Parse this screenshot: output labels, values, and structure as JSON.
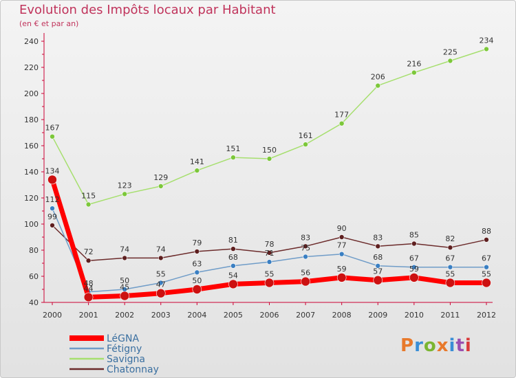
{
  "title": "Evolution des Impôts locaux par Habitant",
  "subtitle": "(en € et par an)",
  "brand": {
    "text": "Proxiti",
    "colors": [
      "#e8792b",
      "#3a8ed6",
      "#7ab532",
      "#e8792b",
      "#3a8ed6",
      "#9a4fb0",
      "#d93a3a"
    ]
  },
  "colors": {
    "title": "#c0335b",
    "axis": "#cc0033",
    "label": "#333333"
  },
  "chart_data": {
    "type": "line",
    "title": "Evolution des Impôts locaux par Habitant",
    "subtitle": "(en € et par an)",
    "xlabel": "",
    "ylabel": "",
    "x": [
      "2000",
      "2001",
      "2002",
      "2003",
      "2004",
      "2005",
      "2006",
      "2007",
      "2008",
      "2009",
      "2010",
      "2011",
      "2012"
    ],
    "ylim": [
      40,
      240
    ],
    "yticks": [
      40,
      60,
      80,
      100,
      120,
      140,
      160,
      180,
      200,
      220,
      240
    ],
    "grid": false,
    "legend_position": "bottom-left",
    "series": [
      {
        "name": "LéGNA",
        "color": "#ff0000",
        "dot": "#cc1111",
        "width": 7,
        "radius": 6.5,
        "values": [
          134,
          44,
          45,
          47,
          50,
          54,
          55,
          56,
          59,
          57,
          59,
          55,
          55
        ]
      },
      {
        "name": "Fétigny",
        "color": "#6f9cc8",
        "dot": "#3a7fc2",
        "width": 1.5,
        "radius": 3.5,
        "values": [
          112,
          48,
          50,
          55,
          63,
          68,
          71,
          75,
          77,
          68,
          67,
          67,
          67
        ]
      },
      {
        "name": "Savigna",
        "color": "#a6df6e",
        "dot": "#7cc73a",
        "width": 1.5,
        "radius": 3.5,
        "values": [
          167,
          115,
          123,
          129,
          141,
          151,
          150,
          161,
          177,
          206,
          216,
          225,
          234
        ]
      },
      {
        "name": "Chatonnay",
        "color": "#6b2a2a",
        "dot": "#5e1f1f",
        "width": 1.5,
        "radius": 3.5,
        "values": [
          99,
          72,
          74,
          74,
          79,
          81,
          78,
          83,
          90,
          83,
          85,
          82,
          88
        ]
      }
    ]
  }
}
